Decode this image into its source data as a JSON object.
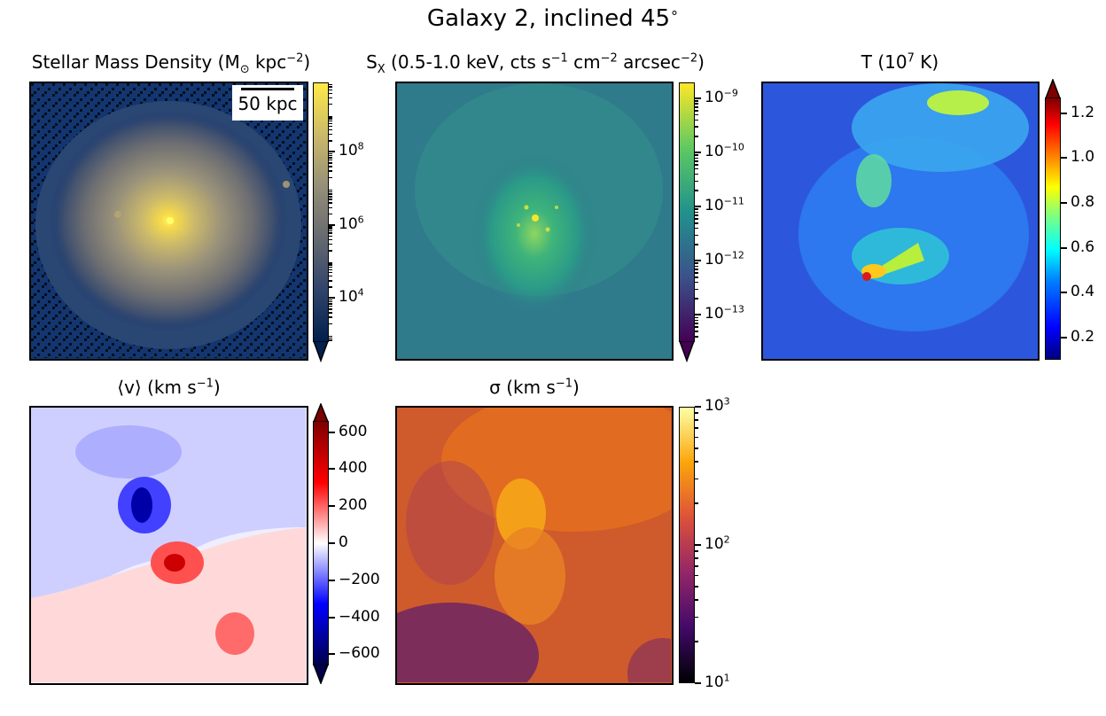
{
  "figure": {
    "title_prefix": "Galaxy 2, inclined 45",
    "title_degree": "∘"
  },
  "chart_data": [
    {
      "type": "heatmap",
      "id": "stellar",
      "title": "Stellar Mass Density (M",
      "title_sub": "⊙",
      "title_tail": " kpc",
      "title_sup": "−2",
      "title_close": ")",
      "scale": "log",
      "colormap": "cividis",
      "vmin_exp": 2.8,
      "vmax_exp": 9.9,
      "ticks": [
        {
          "base": "10",
          "exp": "8",
          "value_exp": 8
        },
        {
          "base": "10",
          "exp": "6",
          "value_exp": 6
        },
        {
          "base": "10",
          "exp": "4",
          "value_exp": 4
        }
      ],
      "extend": "min",
      "scalebar_label": "50 kpc",
      "colors": [
        "#00204d",
        "#31446b",
        "#666970",
        "#958f78",
        "#cbba69",
        "#ffea46"
      ]
    },
    {
      "type": "heatmap",
      "id": "xray",
      "title": "S",
      "title_sub": "X",
      "title_tail": " (0.5-1.0 keV, cts s",
      "title_sup": "−1",
      "title_tail2": " cm",
      "title_sup2": "−2",
      "title_tail3": " arcsec",
      "title_sup3": "−2",
      "title_close": ")",
      "scale": "log",
      "colormap": "viridis",
      "vmin_exp": -13.5,
      "vmax_exp": -8.7,
      "ticks": [
        {
          "base": "10",
          "exp": "−9",
          "value_exp": -9
        },
        {
          "base": "10",
          "exp": "−10",
          "value_exp": -10
        },
        {
          "base": "10",
          "exp": "−11",
          "value_exp": -11
        },
        {
          "base": "10",
          "exp": "−12",
          "value_exp": -12
        },
        {
          "base": "10",
          "exp": "−13",
          "value_exp": -13
        }
      ],
      "extend": "min",
      "colors": [
        "#440154",
        "#3b528b",
        "#21918c",
        "#5ec962",
        "#fde725"
      ]
    },
    {
      "type": "heatmap",
      "id": "temperature",
      "title": "T (10",
      "title_sup": "7",
      "title_tail": " K)",
      "scale": "linear",
      "colormap": "jet",
      "vmin": 0.1,
      "vmax": 1.27,
      "ticks": [
        {
          "label": "1.2",
          "value": 1.2
        },
        {
          "label": "1.0",
          "value": 1.0
        },
        {
          "label": "0.8",
          "value": 0.8
        },
        {
          "label": "0.6",
          "value": 0.6
        },
        {
          "label": "0.4",
          "value": 0.4
        },
        {
          "label": "0.2",
          "value": 0.2
        }
      ],
      "extend": "max",
      "colors": [
        "#00007f",
        "#0000ff",
        "#007fff",
        "#00ffff",
        "#7fff7f",
        "#ffff00",
        "#ff7f00",
        "#ff0000",
        "#7f0000"
      ]
    },
    {
      "type": "heatmap",
      "id": "velocity",
      "title": "⟨v⟩ (km s",
      "title_sup": "−1",
      "title_close": ")",
      "scale": "linear",
      "colormap": "seismic",
      "vmin": -660,
      "vmax": 660,
      "ticks": [
        {
          "label": "600",
          "value": 600
        },
        {
          "label": "400",
          "value": 400
        },
        {
          "label": "200",
          "value": 200
        },
        {
          "label": "0",
          "value": 0
        },
        {
          "label": "−200",
          "value": -200
        },
        {
          "label": "−400",
          "value": -400
        },
        {
          "label": "−600",
          "value": -600
        }
      ],
      "extend": "both",
      "colors": [
        "#00004c",
        "#0000ff",
        "#ffffff",
        "#ff0000",
        "#7f0000"
      ]
    },
    {
      "type": "heatmap",
      "id": "dispersion",
      "title": "σ (km s",
      "title_sup": "−1",
      "title_close": ")",
      "scale": "log",
      "colormap": "inferno",
      "vmin_exp": 1,
      "vmax_exp": 3,
      "ticks": [
        {
          "base": "10",
          "exp": "3",
          "value_exp": 3
        },
        {
          "base": "10",
          "exp": "2",
          "value_exp": 2
        },
        {
          "base": "10",
          "exp": "1",
          "value_exp": 1
        }
      ],
      "extend": "neither",
      "colors": [
        "#000004",
        "#420a68",
        "#932667",
        "#dd513a",
        "#fca50a",
        "#fcffa4"
      ]
    }
  ]
}
